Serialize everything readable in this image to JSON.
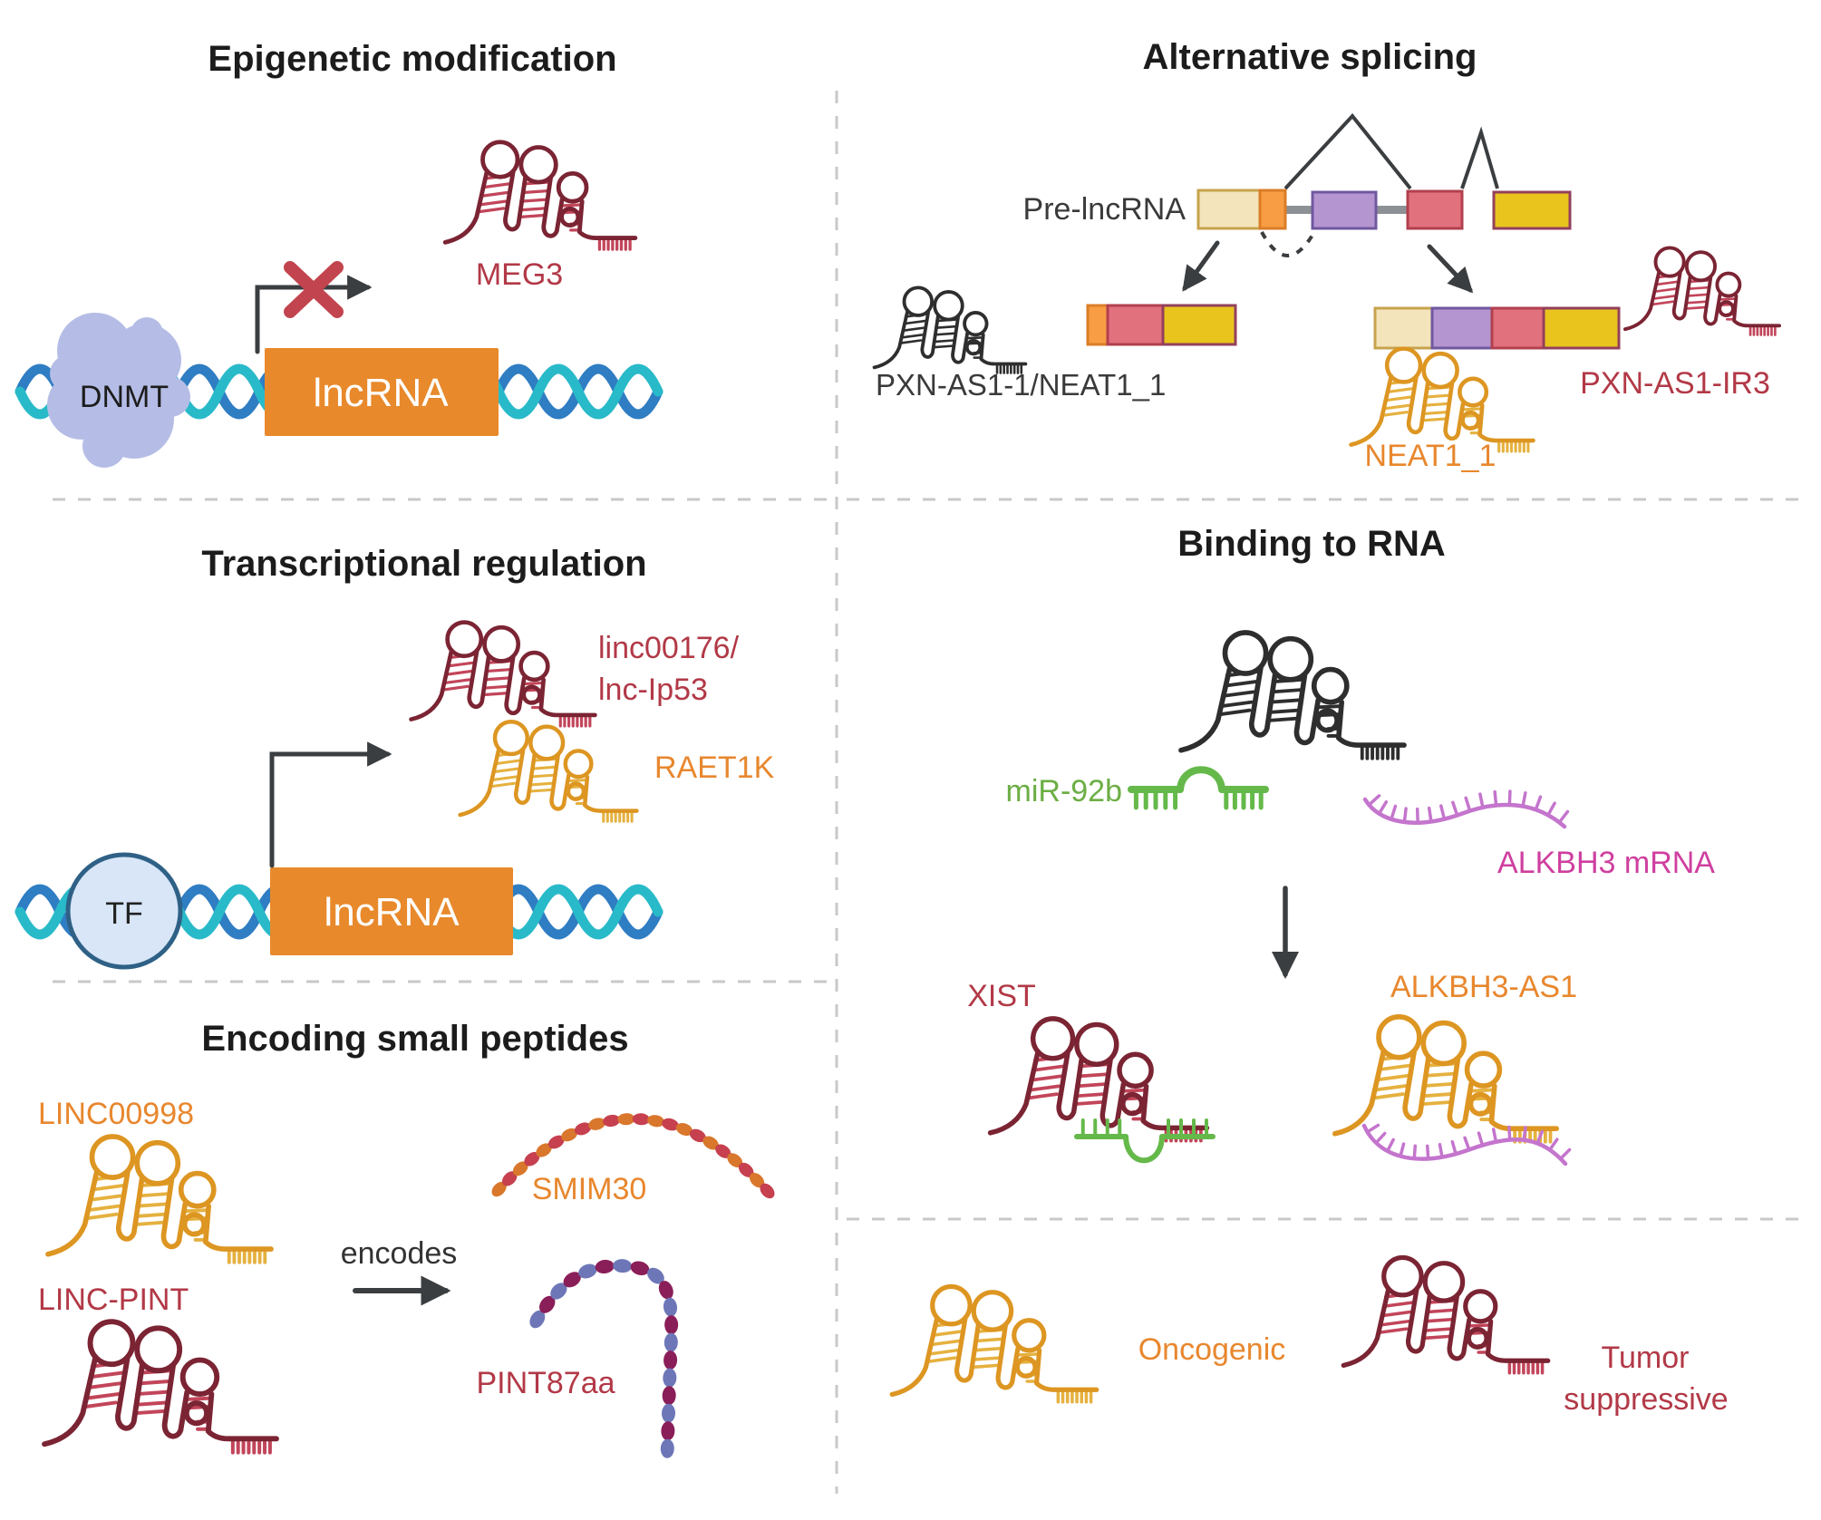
{
  "sections": {
    "epigenetic": {
      "title": "Epigenetic modification"
    },
    "splicing": {
      "title": "Alternative splicing"
    },
    "transcription": {
      "title": "Transcriptional regulation"
    },
    "binding": {
      "title": "Binding to RNA"
    },
    "peptides": {
      "title": "Encoding small peptides"
    }
  },
  "labels": {
    "dnmt": "DNMT",
    "gene_box": "lncRNA",
    "meg3": "MEG3",
    "pre_lncrna": "Pre-lncRNA",
    "pxn_neat": "PXN-AS1-1/NEAT1_1",
    "neat1": "NEAT1_1",
    "pxn_ir3": "PXN-AS1-IR3",
    "linc00176_line1": "linc00176/",
    "linc00176_line2": "lnc-Ip53",
    "raet1k": "RAET1K",
    "tf": "TF",
    "mir92b": "miR-92b",
    "alkbh3_mrna": "ALKBH3 mRNA",
    "xist": "XIST",
    "alkbh3_as1": "ALKBH3-AS1",
    "linc00998": "LINC00998",
    "linc_pint": "LINC-PINT",
    "encodes": "encodes",
    "smim30": "SMIM30",
    "pint87aa": "PINT87aa",
    "oncogenic": "Oncogenic",
    "tumor_line1": "Tumor",
    "tumor_line2": "suppressive"
  },
  "colors": {
    "title_dark": "#1c1c1c",
    "label_dark": "#3a3a3a",
    "crimson_label": "#b23947",
    "orange_label": "#e8872e",
    "green_label": "#6cae44",
    "magenta_label": "#cf3f9f",
    "maroon_rna": "#7b2433",
    "crimson_accent": "#c2455a",
    "orange_rna": "#dd9622",
    "orange_rna_accent": "#e5b13f",
    "black_rna": "#2e2e2e",
    "green_rna": "#65b94a",
    "violet_rna": "#c475cd",
    "dna_blue": "#2f7dc3",
    "dna_teal": "#29bac9",
    "gene_box": "#e8892b",
    "tf_fill": "#d8e6f8",
    "tf_stroke": "#2f6186",
    "dnmt_fill": "#b5bde6",
    "arrow_dark": "#3b3e40",
    "red_x": "#c2444e",
    "dashed_line": "#c8c8c8",
    "exon_beige": "#f3e4bb",
    "exon_beige_border": "#c7a34e",
    "exon_orange": "#f89d43",
    "exon_orange_border": "#db7d28",
    "exon_purple": "#b595d0",
    "exon_purple_border": "#70589f",
    "exon_pink": "#e1717d",
    "exon_pink_border": "#b2404e",
    "exon_yellow": "#e8c41d",
    "exon_yellow_border": "#93405c",
    "exon_connector": "#8d9196",
    "bead_sets": {
      "smim30": [
        "#d9772c",
        "#c6404f"
      ],
      "pint87aa": [
        "#6d77b8",
        "#8a1e58"
      ]
    }
  }
}
